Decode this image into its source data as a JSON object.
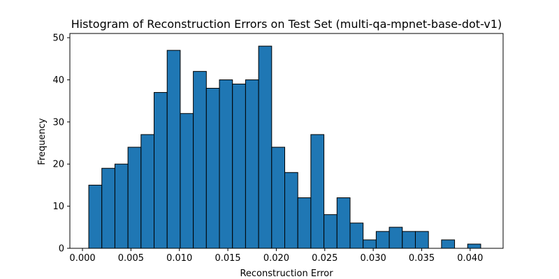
{
  "chart_data": {
    "type": "bar",
    "title": "Histogram of Reconstruction Errors on Test Set (multi-qa-mpnet-base-dot-v1)",
    "xlabel": "Reconstruction Error",
    "ylabel": "Frequency",
    "xlim": [
      -0.0013,
      0.0434
    ],
    "ylim": [
      0,
      51
    ],
    "xticks": [
      0.0,
      0.005,
      0.01,
      0.015,
      0.02,
      0.025,
      0.03,
      0.035,
      0.04
    ],
    "xtick_labels": [
      "0.000",
      "0.005",
      "0.010",
      "0.015",
      "0.020",
      "0.025",
      "0.030",
      "0.035",
      "0.040"
    ],
    "yticks": [
      0,
      10,
      20,
      30,
      40,
      50
    ],
    "ytick_labels": [
      "0",
      "10",
      "20",
      "30",
      "40",
      "50"
    ],
    "bin_start": 0.00065,
    "bin_width": 0.001348,
    "values": [
      15,
      19,
      20,
      24,
      27,
      37,
      47,
      32,
      42,
      38,
      40,
      39,
      40,
      48,
      24,
      18,
      12,
      27,
      8,
      12,
      6,
      2,
      4,
      5,
      4,
      4,
      0,
      2,
      0,
      1
    ],
    "bar_color": "#1f77b4",
    "edge_color": "#000000",
    "grid": false,
    "legend": "none"
  }
}
